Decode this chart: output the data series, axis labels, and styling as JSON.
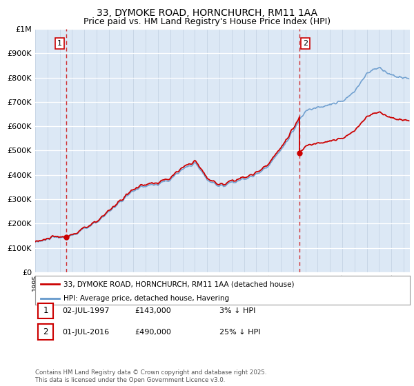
{
  "title": "33, DYMOKE ROAD, HORNCHURCH, RM11 1AA",
  "subtitle": "Price paid vs. HM Land Registry's House Price Index (HPI)",
  "ylim": [
    0,
    1000000
  ],
  "yticks": [
    0,
    100000,
    200000,
    300000,
    400000,
    500000,
    600000,
    700000,
    800000,
    900000,
    1000000
  ],
  "ytick_labels": [
    "£0",
    "£100K",
    "£200K",
    "£300K",
    "£400K",
    "£500K",
    "£600K",
    "£700K",
    "£800K",
    "£900K",
    "£1M"
  ],
  "xlim_start": 1995.0,
  "xlim_end": 2025.5,
  "purchase1_date": 1997.5,
  "purchase1_price": 143000,
  "purchase1_label": "1",
  "purchase2_date": 2016.5,
  "purchase2_price": 490000,
  "purchase2_label": "2",
  "hpi_color": "#6699cc",
  "price_color": "#cc0000",
  "bg_color": "#dce8f5",
  "grid_color": "#c0cfe0",
  "legend_entry1": "33, DYMOKE ROAD, HORNCHURCH, RM11 1AA (detached house)",
  "legend_entry2": "HPI: Average price, detached house, Havering",
  "annotation1_date": "02-JUL-1997",
  "annotation1_price": "£143,000",
  "annotation1_note": "3% ↓ HPI",
  "annotation2_date": "01-JUL-2016",
  "annotation2_price": "£490,000",
  "annotation2_note": "25% ↓ HPI",
  "footer": "Contains HM Land Registry data © Crown copyright and database right 2025.\nThis data is licensed under the Open Government Licence v3.0.",
  "title_fontsize": 10,
  "subtitle_fontsize": 9
}
